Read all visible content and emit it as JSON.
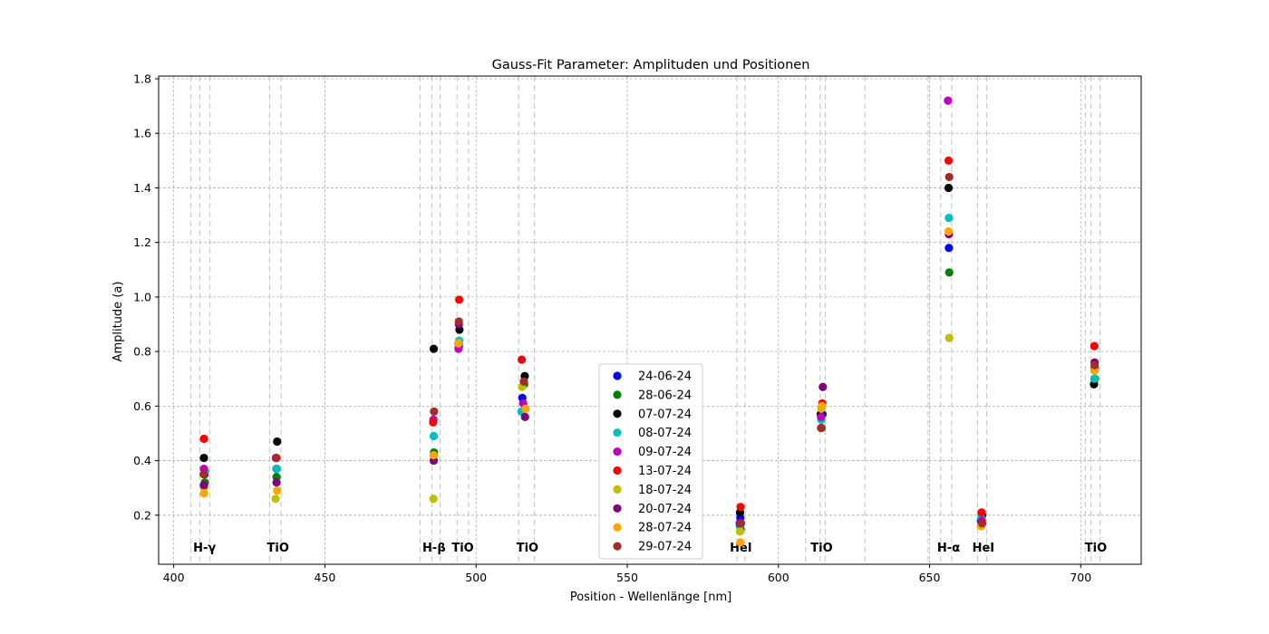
{
  "chart_data": {
    "type": "scatter",
    "title": "Gauss-Fit Parameter: Amplituden und Positionen",
    "xlabel": "Position - Wellenlänge [nm]",
    "ylabel": "Amplitude (a)",
    "xlim": [
      395,
      720
    ],
    "ylim": [
      0.02,
      1.81
    ],
    "xticks": [
      400,
      450,
      500,
      550,
      600,
      650,
      700
    ],
    "yticks": [
      0.2,
      0.4,
      0.6,
      0.8,
      1.0,
      1.2,
      1.4,
      1.6,
      1.8
    ],
    "ytick_labels": [
      "0.2",
      "0.4",
      "0.6",
      "0.8",
      "1.0",
      "1.2",
      "1.4",
      "1.6",
      "1.8"
    ],
    "grid": true,
    "legend_position": "lower center",
    "line_labels": [
      {
        "x": 410.2,
        "text": "H-γ"
      },
      {
        "x": 434.5,
        "text": "TiO"
      },
      {
        "x": 486.1,
        "text": "H-β"
      },
      {
        "x": 495.6,
        "text": "TiO"
      },
      {
        "x": 517.0,
        "text": "TiO"
      },
      {
        "x": 587.6,
        "text": "HeI"
      },
      {
        "x": 614.3,
        "text": "TiO"
      },
      {
        "x": 656.3,
        "text": "H-α"
      },
      {
        "x": 667.8,
        "text": "HeI"
      },
      {
        "x": 705.0,
        "text": "TiO"
      }
    ],
    "reference_lines": [
      405.7,
      408.6,
      412.0,
      431.7,
      435.5,
      481.5,
      485.4,
      488.1,
      493.7,
      497.5,
      514.1,
      519.3,
      586.3,
      589.0,
      609.0,
      613.8,
      615.5,
      628.6,
      649.5,
      653.7,
      657.3,
      665.9,
      668.9,
      701.5,
      703.4,
      706.4
    ],
    "series": [
      {
        "name": "24-06-24",
        "color": "#0000ff",
        "x": [
          410.2,
          434.0,
          486.0,
          494.3,
          515.3,
          587.4,
          614.6,
          656.4,
          667.0,
          704.6
        ],
        "y": [
          0.35,
          0.37,
          0.42,
          0.82,
          0.63,
          0.19,
          0.57,
          1.18,
          0.18,
          0.74
        ]
      },
      {
        "name": "28-06-24",
        "color": "#008000",
        "x": [
          410.3,
          434.0,
          486.1,
          494.3,
          515.9,
          587.5,
          614.3,
          656.5,
          667.2,
          704.7
        ],
        "y": [
          0.32,
          0.34,
          0.43,
          0.83,
          0.68,
          0.15,
          0.52,
          1.09,
          0.18,
          0.7
        ]
      },
      {
        "name": "07-07-24",
        "color": "#000000",
        "x": [
          410.0,
          434.2,
          486.0,
          494.5,
          516.1,
          587.3,
          614.0,
          656.3,
          667.4,
          704.4
        ],
        "y": [
          0.41,
          0.47,
          0.81,
          0.88,
          0.71,
          0.21,
          0.57,
          1.4,
          0.2,
          0.68
        ]
      },
      {
        "name": "08-07-24",
        "color": "#00bfbf",
        "x": [
          410.4,
          434.1,
          486.0,
          494.4,
          515.0,
          587.2,
          614.2,
          656.4,
          667.1,
          704.5
        ],
        "y": [
          0.36,
          0.37,
          0.49,
          0.84,
          0.58,
          0.16,
          0.55,
          1.29,
          0.19,
          0.7
        ]
      },
      {
        "name": "09-07-24",
        "color": "#bf00bf",
        "x": [
          410.0,
          433.8,
          485.9,
          494.2,
          515.6,
          587.4,
          614.1,
          656.1,
          667.3,
          704.6
        ],
        "y": [
          0.37,
          0.41,
          0.55,
          0.81,
          0.61,
          0.17,
          0.56,
          1.72,
          0.18,
          0.74
        ]
      },
      {
        "name": "13-07-24",
        "color": "#ff0000",
        "x": [
          410.0,
          434.0,
          485.8,
          494.4,
          515.1,
          587.5,
          614.5,
          656.3,
          667.2,
          704.5
        ],
        "y": [
          0.48,
          0.41,
          0.54,
          0.99,
          0.77,
          0.23,
          0.61,
          1.5,
          0.21,
          0.82
        ]
      },
      {
        "name": "18-07-24",
        "color": "#bfbf00",
        "x": [
          410.1,
          433.7,
          485.9,
          494.1,
          515.2,
          587.3,
          614.2,
          656.5,
          667.0,
          704.6
        ],
        "y": [
          0.3,
          0.26,
          0.26,
          0.83,
          0.67,
          0.14,
          0.59,
          0.85,
          0.16,
          0.73
        ]
      },
      {
        "name": "20-07-24",
        "color": "#800080",
        "x": [
          410.0,
          434.0,
          486.0,
          494.3,
          516.2,
          587.2,
          614.7,
          656.4,
          667.2,
          704.6
        ],
        "y": [
          0.31,
          0.32,
          0.4,
          0.9,
          0.56,
          0.17,
          0.67,
          1.23,
          0.17,
          0.76
        ]
      },
      {
        "name": "28-07-24",
        "color": "#ffa500",
        "x": [
          410.0,
          434.2,
          486.0,
          494.2,
          516.4,
          587.4,
          614.4,
          656.3,
          667.1,
          704.5
        ],
        "y": [
          0.28,
          0.29,
          0.42,
          0.83,
          0.59,
          0.1,
          0.6,
          1.24,
          0.16,
          0.73
        ]
      },
      {
        "name": "29-07-24",
        "color": "#a52a2a",
        "x": [
          409.9,
          433.9,
          486.1,
          494.3,
          515.8,
          587.6,
          614.1,
          656.5,
          667.4,
          704.6
        ],
        "y": [
          0.35,
          0.41,
          0.58,
          0.91,
          0.69,
          0.17,
          0.52,
          1.44,
          0.17,
          0.75
        ]
      }
    ]
  }
}
